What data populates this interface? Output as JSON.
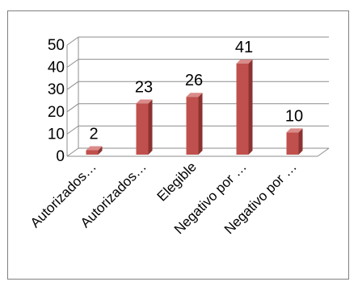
{
  "chart_data": {
    "type": "bar",
    "categories": [
      "Autorizados…",
      "Autorizados…",
      "Elegible",
      "Negativo por …",
      "Negativo por …"
    ],
    "values": [
      2,
      23,
      26,
      41,
      10
    ],
    "data_labels": [
      "2",
      "23",
      "26",
      "41",
      "10"
    ],
    "y_ticks": [
      "0",
      "10",
      "20",
      "30",
      "40",
      "50"
    ],
    "ylim": [
      0,
      50
    ],
    "grid": true,
    "legend": "none",
    "style": "3d-column",
    "colors": {
      "bar_front": "#c0504d",
      "bar_top": "#d98b89",
      "bar_side": "#8c3331",
      "grid": "#8c8c8c",
      "frame": "#7f7f7f"
    }
  }
}
